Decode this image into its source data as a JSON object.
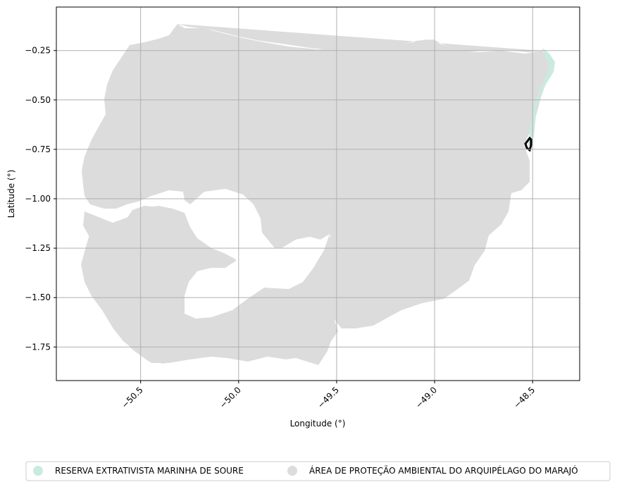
{
  "map": {
    "xlabel": "Longitude (°)",
    "ylabel": "Latitude (°)",
    "xlim": [
      -50.93,
      -48.26
    ],
    "ylim": [
      -1.92,
      -0.03
    ],
    "xticks": [
      -50.5,
      -50.0,
      -49.5,
      -49.0,
      -48.5
    ],
    "xtick_labels": [
      "−50.5",
      "−50.0",
      "−49.5",
      "−49.0",
      "−48.5"
    ],
    "yticks": [
      -0.25,
      -0.5,
      -0.75,
      -1.0,
      -1.25,
      -1.5,
      -1.75
    ],
    "ytick_labels": [
      "−0.25",
      "−0.50",
      "−0.75",
      "−1.00",
      "−1.25",
      "−1.50",
      "−1.75"
    ],
    "grid": true,
    "colors": {
      "apa": "#dcdcdc",
      "resex": "#c9ebdf",
      "outline": "#000000",
      "grid": "#b0b0b0"
    }
  },
  "legend": {
    "placement": "bottom-center",
    "items": [
      {
        "label": "RESERVA EXTRATIVISTA MARINHA DE SOURE",
        "color": "#c9ebdf"
      },
      {
        "label": "ÁREA DE PROTEÇÃO AMBIENTAL DO ARQUIPÉLAGO DO MARAJÓ",
        "color": "#dcdcdc"
      }
    ]
  }
}
